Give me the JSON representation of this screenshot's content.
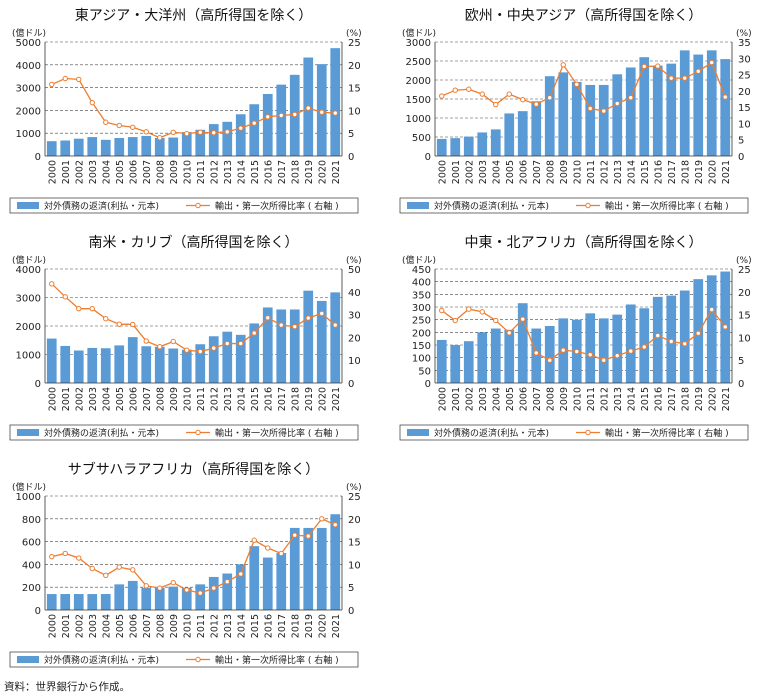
{
  "years": [
    "2000",
    "2001",
    "2002",
    "2003",
    "2004",
    "2005",
    "2006",
    "2007",
    "2008",
    "2009",
    "2010",
    "2011",
    "2012",
    "2013",
    "2014",
    "2015",
    "2016",
    "2017",
    "2018",
    "2019",
    "2020",
    "2021"
  ],
  "legend": {
    "bar": "対外債務の返済(利払・元本)",
    "line": "輸出・第一次所得比率 ( 右軸 )"
  },
  "axis_units": {
    "left": "(億ドル)",
    "right": "(%)"
  },
  "colors": {
    "bar": "#5b9bd5",
    "line": "#ed7d31"
  },
  "source": "資料：世界銀行から作成。",
  "chart_data": [
    {
      "type": "bar",
      "title": "東アジア・大洋州（高所得国を除く）",
      "ylim": [
        0,
        5000
      ],
      "yticks": [
        0,
        1000,
        2000,
        3000,
        4000,
        5000
      ],
      "y2lim": [
        0,
        25
      ],
      "y2ticks": [
        0,
        5,
        10,
        15,
        20,
        25
      ],
      "bars": [
        650,
        680,
        760,
        830,
        710,
        790,
        830,
        880,
        790,
        810,
        1050,
        1150,
        1400,
        1500,
        1830,
        2270,
        2720,
        3130,
        3560,
        4320,
        4030,
        4730
      ],
      "line": [
        15.7,
        17.0,
        16.8,
        11.7,
        7.4,
        6.7,
        6.3,
        5.3,
        4.0,
        5.2,
        4.9,
        5.2,
        5.1,
        5.3,
        6.1,
        7.2,
        8.6,
        8.9,
        9.1,
        10.5,
        9.6,
        9.4
      ]
    },
    {
      "type": "bar",
      "title": "欧州・中央アジア（高所得国を除く）",
      "ylim": [
        0,
        3000
      ],
      "yticks": [
        0,
        500,
        1000,
        1500,
        2000,
        2500,
        3000
      ],
      "y2lim": [
        0,
        35
      ],
      "y2ticks": [
        0,
        5,
        10,
        15,
        20,
        25,
        30,
        35
      ],
      "bars": [
        450,
        470,
        510,
        620,
        700,
        1120,
        1180,
        1440,
        2100,
        2200,
        1950,
        1870,
        1870,
        2150,
        2330,
        2600,
        2380,
        2430,
        2780,
        2670,
        2780,
        2550
      ],
      "line": [
        18.4,
        20.2,
        20.5,
        19.0,
        15.8,
        19.0,
        17.3,
        15.9,
        17.9,
        28.0,
        22.0,
        14.6,
        13.8,
        16.1,
        17.9,
        27.5,
        27.6,
        23.9,
        23.9,
        26.0,
        28.7,
        18.1
      ]
    },
    {
      "type": "bar",
      "title": "南米・カリブ（高所得国を除く）",
      "ylim": [
        0,
        4000
      ],
      "yticks": [
        0,
        1000,
        2000,
        3000,
        4000
      ],
      "y2lim": [
        0,
        50
      ],
      "y2ticks": [
        0,
        10,
        20,
        30,
        40,
        50
      ],
      "bars": [
        1560,
        1300,
        1140,
        1230,
        1220,
        1320,
        1610,
        1290,
        1270,
        1210,
        1170,
        1360,
        1640,
        1800,
        1690,
        2090,
        2650,
        2580,
        2580,
        3240,
        2880,
        3180
      ],
      "line": [
        43.5,
        37.8,
        32.6,
        32.6,
        28.2,
        25.8,
        25.7,
        18.4,
        15.9,
        18.2,
        14.4,
        13.8,
        15.3,
        17.3,
        17.3,
        21.9,
        28.6,
        25.4,
        24.7,
        28.5,
        30.5,
        25.4
      ]
    },
    {
      "type": "bar",
      "title": "中東・北アフリカ（高所得国を除く）",
      "ylim": [
        0,
        450
      ],
      "yticks": [
        0,
        50,
        100,
        150,
        200,
        250,
        300,
        350,
        400,
        450
      ],
      "y2lim": [
        0,
        25
      ],
      "y2ticks": [
        0,
        5,
        10,
        15,
        20,
        25
      ],
      "bars": [
        170,
        150,
        165,
        200,
        215,
        210,
        315,
        215,
        225,
        255,
        250,
        275,
        255,
        270,
        310,
        295,
        340,
        345,
        365,
        410,
        425,
        440
      ],
      "line": [
        15.9,
        13.7,
        16.2,
        15.6,
        13.7,
        11.0,
        14.0,
        6.6,
        5.0,
        7.2,
        6.9,
        6.2,
        5.0,
        6.0,
        7.0,
        7.9,
        10.4,
        9.1,
        8.6,
        10.9,
        16.1,
        12.3
      ]
    },
    {
      "type": "bar",
      "title": "サブサハラアフリカ（高所得国を除く）",
      "ylim": [
        0,
        1000
      ],
      "yticks": [
        0,
        200,
        400,
        600,
        800,
        1000
      ],
      "y2lim": [
        0,
        25
      ],
      "y2ticks": [
        0,
        5,
        10,
        15,
        20,
        25
      ],
      "bars": [
        140,
        140,
        140,
        140,
        140,
        225,
        255,
        195,
        195,
        205,
        195,
        225,
        290,
        320,
        400,
        560,
        460,
        500,
        720,
        720,
        720,
        840
      ],
      "line": [
        11.7,
        12.4,
        11.4,
        9.1,
        7.6,
        9.4,
        8.8,
        5.3,
        4.8,
        6.0,
        4.4,
        3.7,
        4.8,
        6.2,
        7.9,
        15.3,
        13.6,
        12.4,
        16.4,
        16.2,
        20.0,
        18.7
      ]
    }
  ]
}
